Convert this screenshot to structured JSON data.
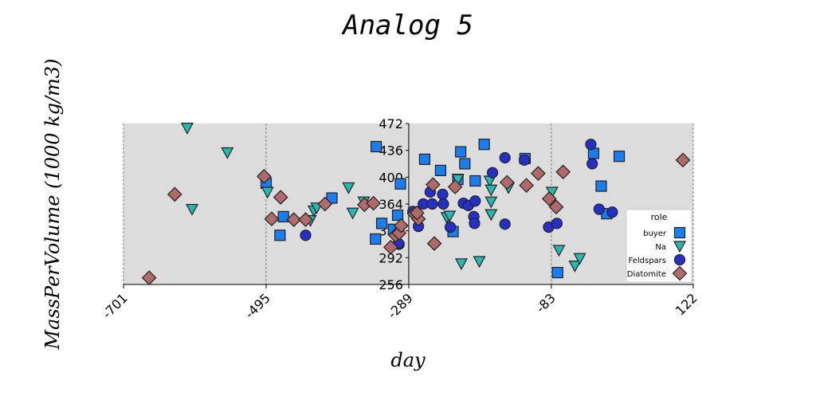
{
  "chart_data": {
    "type": "scatter",
    "title": "Analog 5",
    "xlabel": "day",
    "ylabel": "MassPerVolume (1000 kg/m3)",
    "xlim": [
      -701,
      122
    ],
    "ylim": [
      256,
      472
    ],
    "xticks": [
      -701,
      -495,
      -289,
      -83,
      122
    ],
    "yticks": [
      256,
      292,
      328,
      364,
      400,
      436,
      472
    ],
    "grid": "vertical",
    "legend": {
      "title": "role",
      "placement": "lower-right"
    },
    "series": [
      {
        "name": "buyer",
        "marker": "square",
        "color": "#1a7ef0",
        "points": [
          [
            -495,
            392
          ],
          [
            -470,
            347
          ],
          [
            -475,
            322
          ],
          [
            -400,
            372
          ],
          [
            -336,
            441
          ],
          [
            -337,
            317
          ],
          [
            -328,
            338
          ],
          [
            -305,
            349
          ],
          [
            -301,
            391
          ],
          [
            -311,
            330
          ],
          [
            -266,
            424
          ],
          [
            -243,
            409
          ],
          [
            -225,
            327
          ],
          [
            -218,
            397
          ],
          [
            -214,
            434
          ],
          [
            -208,
            418
          ],
          [
            -193,
            395
          ],
          [
            -180,
            444
          ],
          [
            -121,
            425
          ],
          [
            -74,
            272
          ],
          [
            -22,
            432
          ],
          [
            -11,
            388
          ],
          [
            -3,
            351
          ],
          [
            15,
            428
          ]
        ]
      },
      {
        "name": "Na",
        "marker": "triangle-down",
        "color": "#27b8b0",
        "points": [
          [
            -609,
            466
          ],
          [
            -551,
            433
          ],
          [
            -602,
            357
          ],
          [
            -493,
            380
          ],
          [
            -431,
            342
          ],
          [
            -426,
            355
          ],
          [
            -422,
            359
          ],
          [
            -376,
            386
          ],
          [
            -370,
            352
          ],
          [
            -354,
            367
          ],
          [
            -234,
            346
          ],
          [
            -230,
            348
          ],
          [
            -218,
            397
          ],
          [
            -213,
            284
          ],
          [
            -187,
            287
          ],
          [
            -172,
            395
          ],
          [
            -170,
            367
          ],
          [
            -170,
            383
          ],
          [
            -170,
            350
          ],
          [
            -145,
            386
          ],
          [
            -82,
            380
          ],
          [
            -72,
            302
          ],
          [
            -49,
            281
          ],
          [
            -42,
            291
          ]
        ]
      },
      {
        "name": "Feldspars",
        "marker": "circle",
        "color": "#2530c8",
        "points": [
          [
            -438,
            322
          ],
          [
            -303,
            310
          ],
          [
            -304,
            311
          ],
          [
            -283,
            354
          ],
          [
            -275,
            334
          ],
          [
            -268,
            364
          ],
          [
            -258,
            380
          ],
          [
            -255,
            364
          ],
          [
            -240,
            377
          ],
          [
            -239,
            364
          ],
          [
            -229,
            333
          ],
          [
            -210,
            365
          ],
          [
            -203,
            362
          ],
          [
            -195,
            347
          ],
          [
            -194,
            338
          ],
          [
            -193,
            368
          ],
          [
            -168,
            406
          ],
          [
            -150,
            426
          ],
          [
            -150,
            337
          ],
          [
            -122,
            423
          ],
          [
            -87,
            333
          ],
          [
            -75,
            338
          ],
          [
            -14,
            357
          ],
          [
            5,
            353
          ],
          [
            -26,
            444
          ],
          [
            -24,
            418
          ]
        ]
      },
      {
        "name": "Diatomite",
        "marker": "diamond",
        "color": "#b06a6a",
        "points": [
          [
            -664,
            265
          ],
          [
            -627,
            377
          ],
          [
            -498,
            401
          ],
          [
            -487,
            344
          ],
          [
            -474,
            373
          ],
          [
            -455,
            343
          ],
          [
            -438,
            343
          ],
          [
            -410,
            364
          ],
          [
            -353,
            363
          ],
          [
            -340,
            365
          ],
          [
            -315,
            306
          ],
          [
            -308,
            322
          ],
          [
            -303,
            325
          ],
          [
            -300,
            335
          ],
          [
            -281,
            351
          ],
          [
            -275,
            344
          ],
          [
            -277,
            352
          ],
          [
            -254,
            390
          ],
          [
            -252,
            311
          ],
          [
            -222,
            387
          ],
          [
            -147,
            393
          ],
          [
            -119,
            389
          ],
          [
            -102,
            405
          ],
          [
            -86,
            371
          ],
          [
            -76,
            360
          ],
          [
            60,
            290
          ],
          [
            -66,
            407
          ],
          [
            107,
            423
          ]
        ]
      }
    ]
  }
}
